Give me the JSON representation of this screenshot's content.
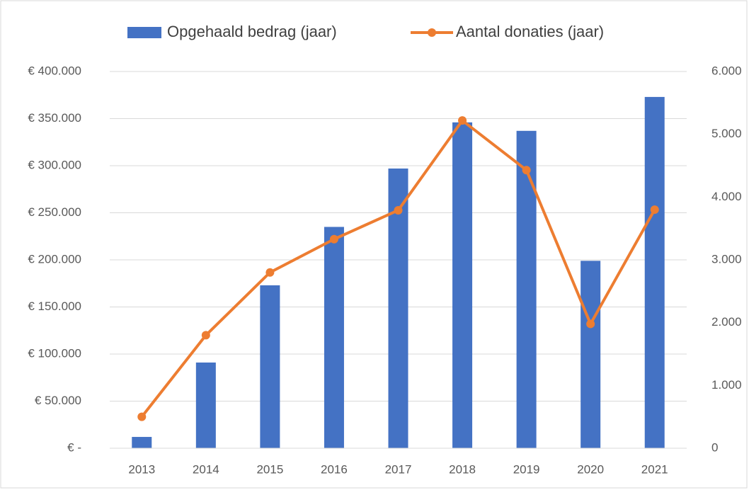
{
  "chart_data": {
    "type": "bar-line",
    "categories": [
      "2013",
      "2014",
      "2015",
      "2016",
      "2017",
      "2018",
      "2019",
      "2020",
      "2021"
    ],
    "series": [
      {
        "name": "Opgehaald bedrag (jaar)",
        "type": "bar",
        "color": "#4472c4",
        "values": [
          12000,
          91000,
          173000,
          235000,
          297000,
          346000,
          337000,
          199000,
          373000
        ]
      },
      {
        "name": "Aantal donaties (jaar)",
        "type": "line",
        "color": "#ed7d31",
        "axis": "y2",
        "values": [
          500,
          1800,
          2800,
          3330,
          3790,
          5220,
          4430,
          1980,
          3800
        ]
      }
    ],
    "ylim": [
      0,
      400000
    ],
    "yticks": [
      {
        "value": 0,
        "label": "€ -"
      },
      {
        "value": 50000,
        "label": "€ 50.000"
      },
      {
        "value": 100000,
        "label": "€ 100.000"
      },
      {
        "value": 150000,
        "label": "€ 150.000"
      },
      {
        "value": 200000,
        "label": "€ 200.000"
      },
      {
        "value": 250000,
        "label": "€ 250.000"
      },
      {
        "value": 300000,
        "label": "€ 300.000"
      },
      {
        "value": 350000,
        "label": "€ 350.000"
      },
      {
        "value": 400000,
        "label": "€ 400.000"
      }
    ],
    "y2lim": [
      0,
      6000
    ],
    "y2ticks": [
      0,
      {
        "value": 1000,
        "label": "1.000"
      },
      {
        "value": 2000,
        "label": "2.000"
      },
      {
        "value": 3000,
        "label": "3.000"
      },
      {
        "value": 4000,
        "label": "4.000"
      },
      {
        "value": 5000,
        "label": "5.000"
      },
      {
        "value": 6000,
        "label": "6.000"
      }
    ],
    "grid": true,
    "legend": "top"
  }
}
